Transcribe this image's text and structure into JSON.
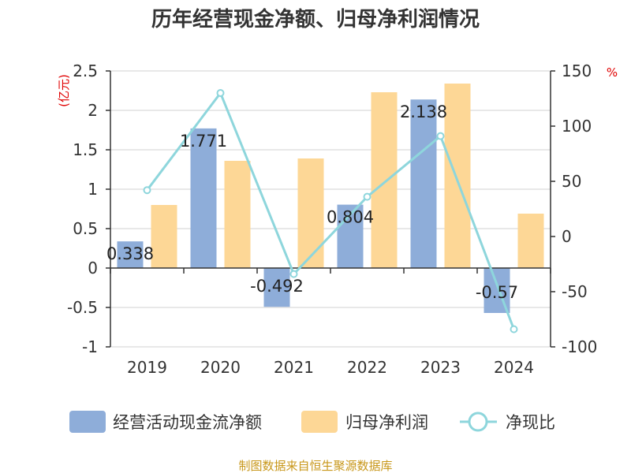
{
  "chart_data": {
    "type": "bar",
    "title": "历年经营现金净额、归母净利润情况",
    "categories": [
      "2019",
      "2020",
      "2021",
      "2022",
      "2023",
      "2024"
    ],
    "series": [
      {
        "name": "经营活动现金流净额",
        "kind": "bar",
        "axis": "left",
        "color": "#8eadd9",
        "values": [
          0.338,
          1.771,
          -0.492,
          0.804,
          2.138,
          -0.57
        ],
        "labels": [
          "0.338",
          "1.771",
          "-0.492",
          "0.804",
          "2.138",
          "-0.57"
        ]
      },
      {
        "name": "归母净利润",
        "kind": "bar",
        "axis": "left",
        "color": "#fdd796",
        "values": [
          0.8,
          1.36,
          1.39,
          2.23,
          2.34,
          0.69
        ]
      },
      {
        "name": "净现比",
        "kind": "line",
        "axis": "right",
        "color": "#8ed6dc",
        "values": [
          42,
          130,
          -34,
          36,
          91,
          -84
        ]
      }
    ],
    "left_axis": {
      "unit": "(亿元)",
      "ylim": [
        -1,
        2.5
      ],
      "ticks": [
        2.5,
        2,
        1.5,
        1,
        0.5,
        0,
        -0.5,
        -1
      ],
      "tick_labels": [
        "2.5",
        "2",
        "1.5",
        "1",
        "0.5",
        "0",
        "-0.5",
        "-1"
      ]
    },
    "right_axis": {
      "unit": "%",
      "ylim": [
        -100,
        150
      ],
      "ticks": [
        150,
        100,
        50,
        0,
        -50,
        -100
      ],
      "tick_labels": [
        "150",
        "100",
        "50",
        "0",
        "-50",
        "-100"
      ]
    },
    "grid": true,
    "legend_position": "bottom"
  },
  "source": "制图数据来自恒生聚源数据库"
}
